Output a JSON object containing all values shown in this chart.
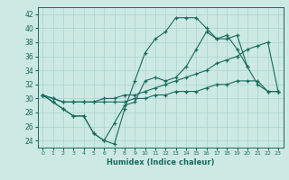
{
  "title": "",
  "xlabel": "Humidex (Indice chaleur)",
  "ylabel": "",
  "xlim": [
    -0.5,
    23.5
  ],
  "ylim": [
    23,
    43
  ],
  "yticks": [
    24,
    26,
    28,
    30,
    32,
    34,
    36,
    38,
    40,
    42
  ],
  "xticks": [
    0,
    1,
    2,
    3,
    4,
    5,
    6,
    7,
    8,
    9,
    10,
    11,
    12,
    13,
    14,
    15,
    16,
    17,
    18,
    19,
    20,
    21,
    22,
    23
  ],
  "bg_color": "#cce9e4",
  "grid_color": "#aad4cc",
  "line_color": "#1a6b5a",
  "lines": [
    [
      30.5,
      29.5,
      28.5,
      27.5,
      27.5,
      25.0,
      24.0,
      26.5,
      29.0,
      29.5,
      32.5,
      33.0,
      32.5,
      33.0,
      34.5,
      37.0,
      39.5,
      38.5,
      39.0,
      37.0,
      34.5,
      32.0,
      31.0,
      31.0
    ],
    [
      30.5,
      29.5,
      28.5,
      27.5,
      27.5,
      25.0,
      24.0,
      23.5,
      28.5,
      32.5,
      36.5,
      38.5,
      39.5,
      41.5,
      41.5,
      41.5,
      40.0,
      38.5,
      38.5,
      39.0,
      34.5,
      null,
      null,
      null
    ],
    [
      30.5,
      30.0,
      29.5,
      29.5,
      29.5,
      29.5,
      29.5,
      29.5,
      29.5,
      30.0,
      30.0,
      30.5,
      30.5,
      31.0,
      31.0,
      31.0,
      31.5,
      32.0,
      32.0,
      32.5,
      32.5,
      32.5,
      31.0,
      31.0
    ],
    [
      30.5,
      30.0,
      29.5,
      29.5,
      29.5,
      29.5,
      30.0,
      30.0,
      30.5,
      30.5,
      31.0,
      31.5,
      32.0,
      32.5,
      33.0,
      33.5,
      34.0,
      35.0,
      35.5,
      36.0,
      37.0,
      37.5,
      38.0,
      31.0
    ]
  ]
}
